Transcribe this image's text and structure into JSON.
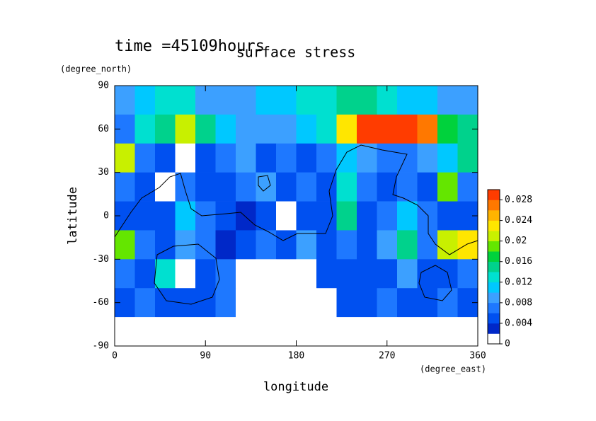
{
  "chart_data": {
    "type": "contour",
    "title": "surface stress",
    "subtitle": "time =45109hours",
    "x_label": "longitude",
    "y_label": "latitude",
    "x_unit": "(degree_east)",
    "y_unit": "(degree_north)",
    "xlim": [
      0,
      360
    ],
    "ylim": [
      -90,
      90
    ],
    "xticks": [
      0,
      90,
      180,
      270,
      360
    ],
    "yticks": [
      -90,
      -60,
      -30,
      0,
      30,
      60,
      90
    ],
    "x": [
      10,
      30,
      50,
      70,
      90,
      110,
      130,
      150,
      170,
      190,
      210,
      230,
      250,
      270,
      290,
      310,
      330,
      350
    ],
    "y": [
      80,
      60,
      40,
      20,
      0,
      -20,
      -40,
      -60,
      -80
    ],
    "z": [
      [
        0.008,
        0.01,
        0.012,
        0.012,
        0.008,
        0.008,
        0.008,
        0.01,
        0.01,
        0.012,
        0.012,
        0.014,
        0.014,
        0.012,
        0.01,
        0.01,
        0.008,
        0.008
      ],
      [
        0.006,
        0.012,
        0.014,
        0.02,
        0.014,
        0.01,
        0.008,
        0.008,
        0.008,
        0.01,
        0.012,
        0.022,
        0.03,
        0.03,
        0.03,
        0.026,
        0.016,
        0.014
      ],
      [
        0.02,
        0.006,
        0.004,
        0.001,
        0.004,
        0.006,
        0.008,
        0.004,
        0.006,
        0.004,
        0.006,
        0.01,
        0.008,
        0.006,
        0.006,
        0.008,
        0.01,
        0.014
      ],
      [
        0.006,
        0.004,
        0.001,
        0.006,
        0.004,
        0.004,
        0.006,
        0.008,
        0.004,
        0.006,
        0.004,
        0.012,
        0.006,
        0.004,
        0.006,
        0.004,
        0.018,
        0.006
      ],
      [
        0.004,
        0.004,
        0.004,
        0.01,
        0.006,
        0.004,
        0.002,
        0.004,
        0.001,
        0.004,
        0.004,
        0.014,
        0.004,
        0.006,
        0.01,
        0.006,
        0.004,
        0.004
      ],
      [
        0.018,
        0.006,
        0.004,
        0.008,
        0.006,
        0.002,
        0.004,
        0.006,
        0.004,
        0.008,
        0.004,
        0.006,
        0.004,
        0.008,
        0.014,
        0.006,
        0.02,
        0.022
      ],
      [
        0.006,
        0.004,
        0.012,
        0.001,
        0.004,
        0.006,
        0.001,
        0.001,
        0.001,
        0.001,
        0.004,
        0.004,
        0.004,
        0.004,
        0.008,
        0.004,
        0.004,
        0.006
      ],
      [
        0.004,
        0.006,
        0.004,
        0.004,
        0.004,
        0.006,
        0.001,
        0.001,
        0.001,
        0.001,
        0.001,
        0.004,
        0.004,
        0.006,
        0.004,
        0.004,
        0.006,
        0.004
      ],
      [
        0,
        0,
        0,
        0,
        0,
        0,
        0,
        0,
        0,
        0,
        0,
        0,
        0,
        0,
        0,
        0,
        0,
        0
      ]
    ],
    "levels": [
      0,
      0.002,
      0.004,
      0.006,
      0.008,
      0.01,
      0.012,
      0.014,
      0.016,
      0.018,
      0.02,
      0.022,
      0.024,
      0.026,
      0.028,
      0.03
    ],
    "colors": [
      "#ffffff",
      "#0028c8",
      "#0050f0",
      "#1e78ff",
      "#3ca0ff",
      "#00c8ff",
      "#00e0d0",
      "#00d28c",
      "#00d23c",
      "#64e600",
      "#c8f000",
      "#ffe600",
      "#ffb400",
      "#ff7800",
      "#ff3c00"
    ],
    "cticks": [
      0,
      0.004,
      0.008,
      0.012,
      0.016,
      0.02,
      0.024,
      0.028
    ]
  }
}
